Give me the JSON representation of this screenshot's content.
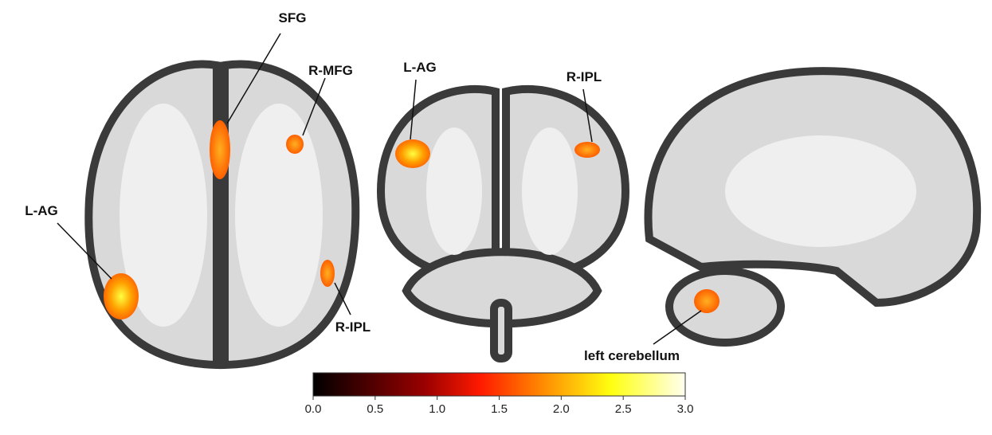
{
  "labels": {
    "axial": [
      "SFG",
      "R-MFG",
      "L-AG",
      "R-IPL"
    ],
    "coronal": [
      "L-AG",
      "R-IPL"
    ],
    "sagittal": [
      "left cerebellum"
    ]
  },
  "colorbar": {
    "range": [
      0,
      3
    ],
    "ticks": [
      {
        "value": 0,
        "label": "0.0"
      },
      {
        "value": 0.5,
        "label": "0.5"
      },
      {
        "value": 1,
        "label": "1.0"
      },
      {
        "value": 1.5,
        "label": "1.5"
      },
      {
        "value": 2,
        "label": "2.0"
      },
      {
        "value": 2.5,
        "label": "2.5"
      },
      {
        "value": 3,
        "label": "3.0"
      }
    ]
  }
}
